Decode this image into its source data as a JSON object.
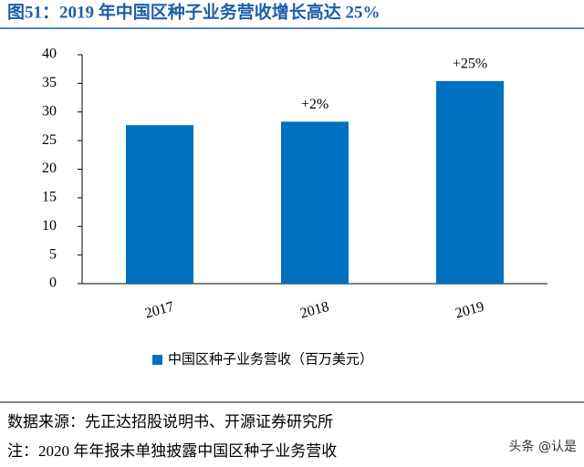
{
  "chart_data": {
    "type": "bar",
    "title": "图51：2019 年中国区种子业务营收增长高达 25%",
    "categories": [
      "2017",
      "2018",
      "2019"
    ],
    "series": [
      {
        "name": "中国区种子业务营收（百万美元）",
        "color": "#0070c0",
        "values": [
          27.7,
          28.3,
          35.4
        ]
      }
    ],
    "growth_labels": [
      null,
      "+2%",
      "+25%"
    ],
    "ylim": [
      0,
      40
    ],
    "yticks": [
      0,
      5,
      10,
      15,
      20,
      25,
      30,
      35,
      40
    ],
    "grid": false,
    "source": "数据来源：先正达招股说明书、开源证券研究所",
    "note": "注：2020 年年报未单独披露中国区种子业务营收",
    "watermark": "头条 @认是"
  }
}
